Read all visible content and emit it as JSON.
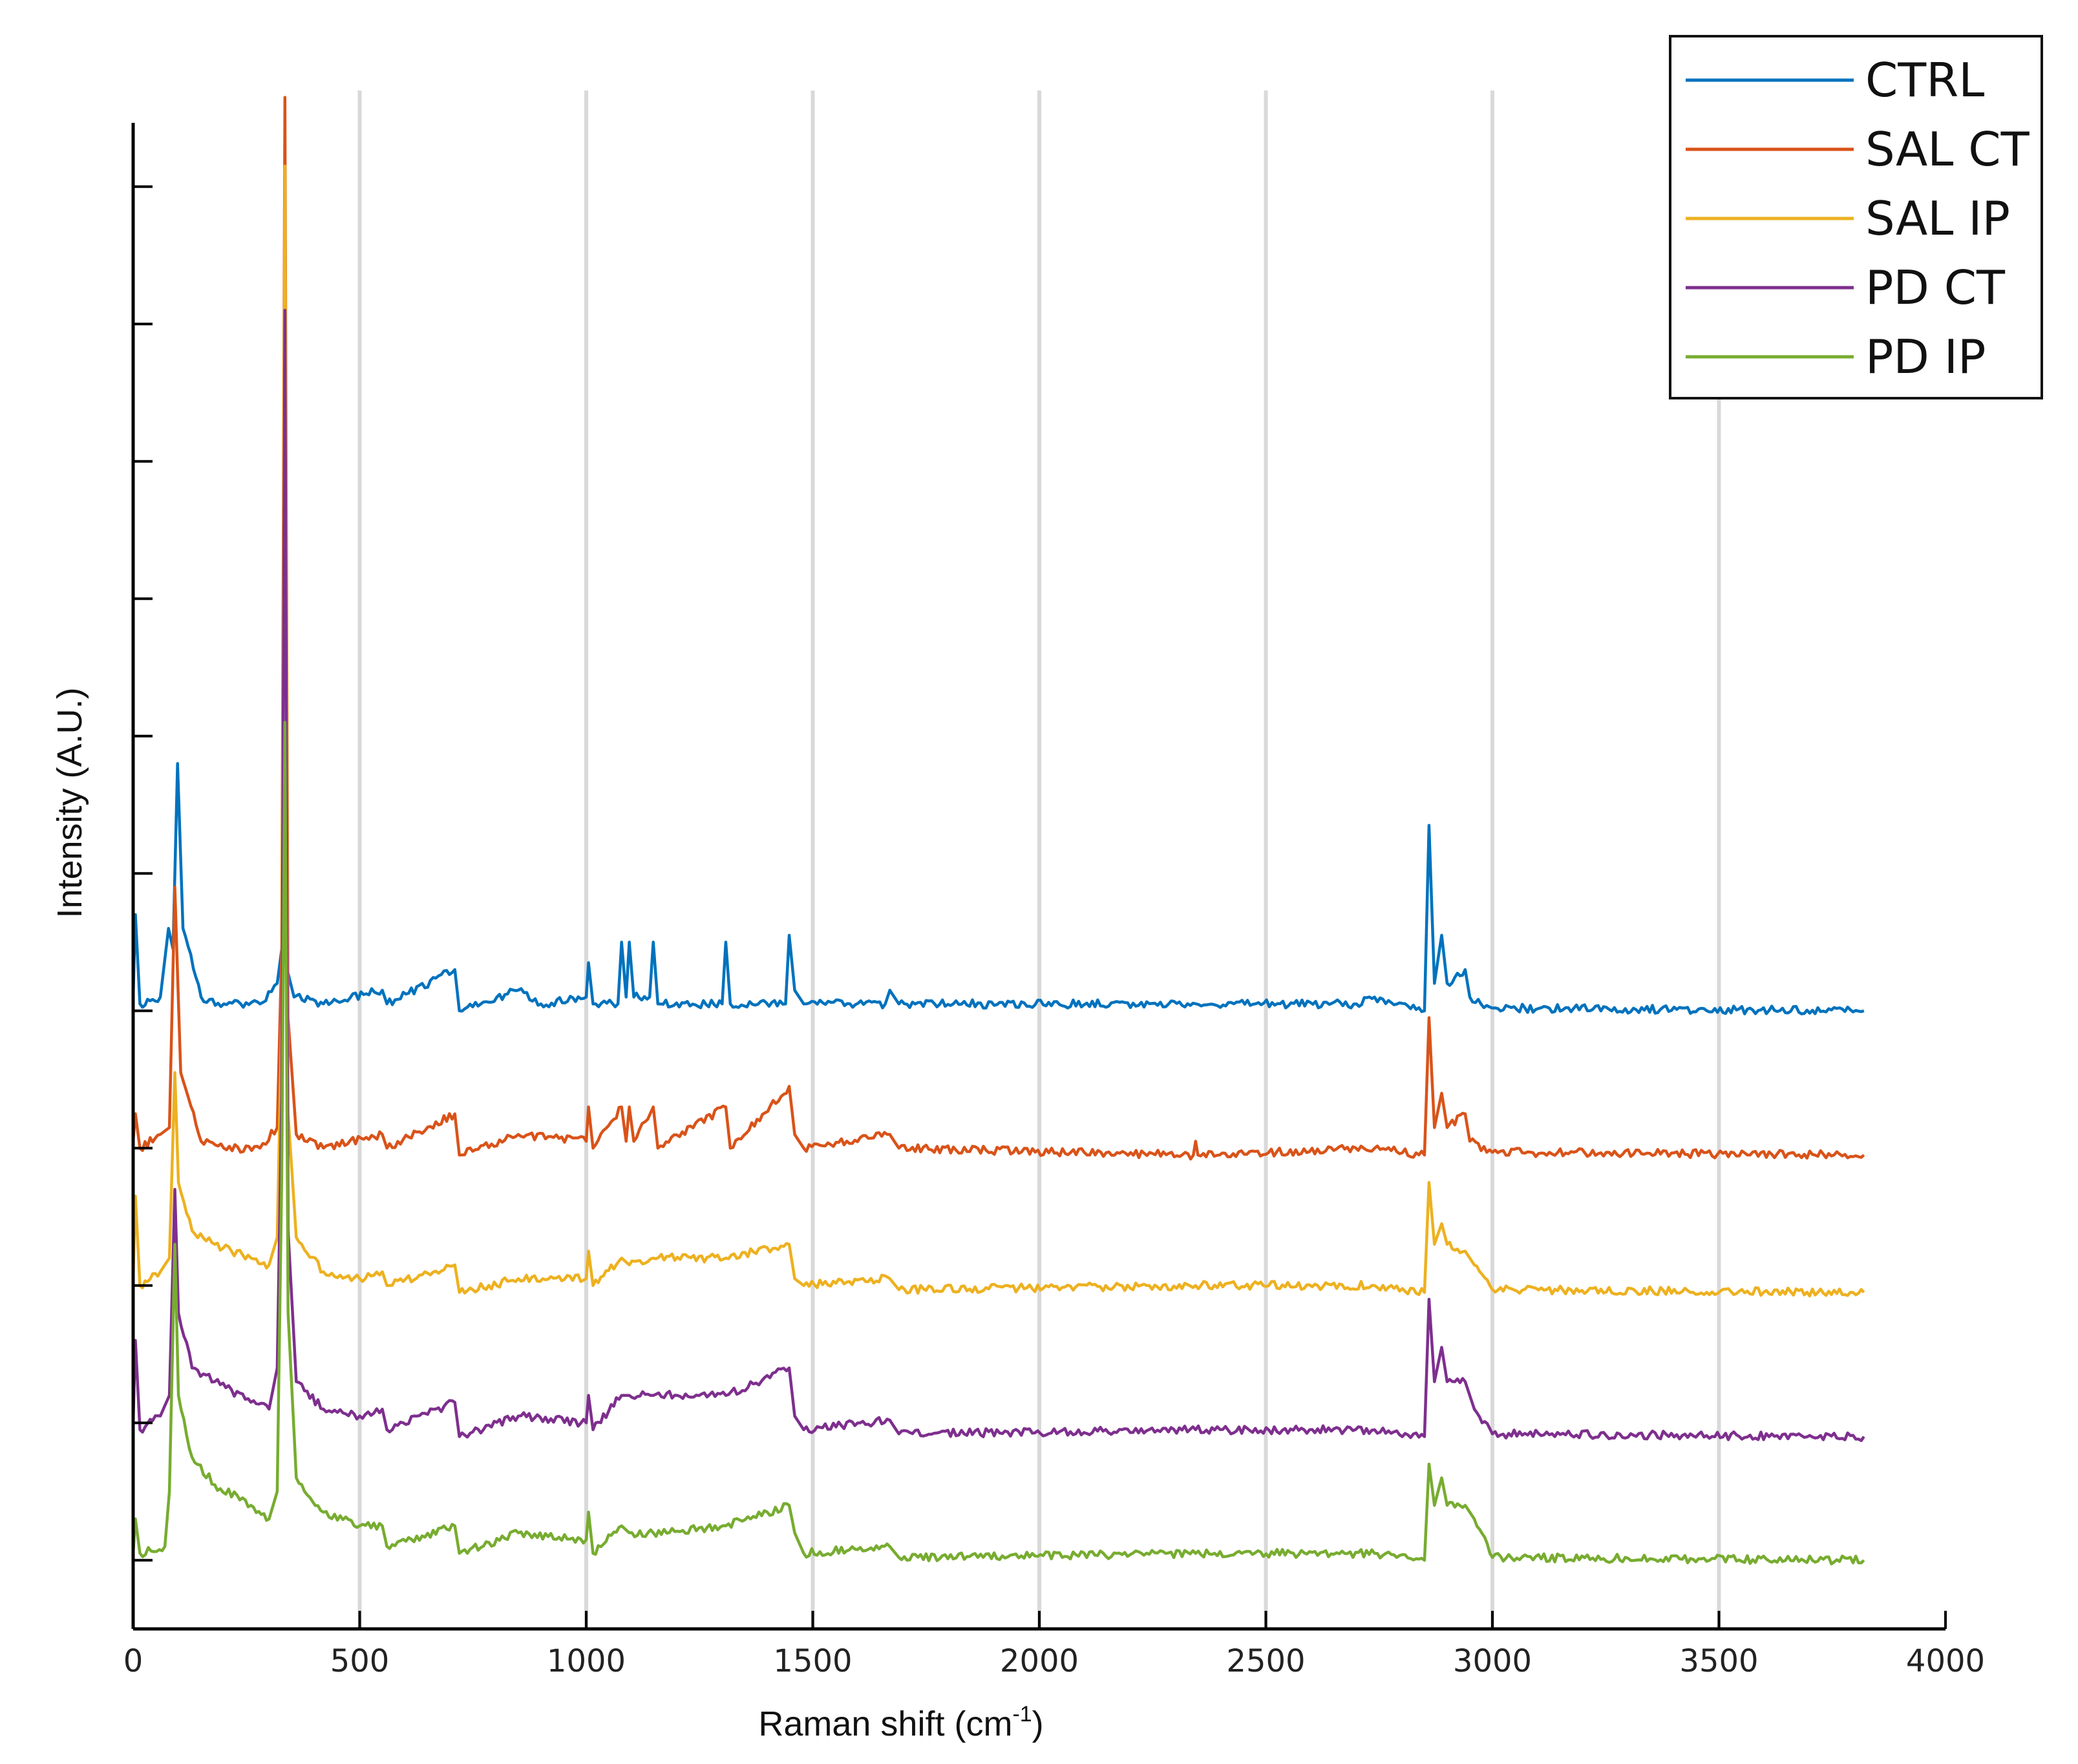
{
  "chart_data": {
    "type": "line",
    "xlabel": "Raman shift (cm",
    "xlabel_sup": "-1",
    "xlabel_end": ")",
    "ylabel": "Intensity (A.U.)",
    "xlim": [
      0,
      4000
    ],
    "ylim": [
      -0.5,
      10.7
    ],
    "x_ticks": [
      "0",
      "500",
      "1000",
      "1500",
      "2000",
      "2500",
      "3000",
      "3500",
      "4000"
    ],
    "y_tick_count": 11,
    "grid": "vertical",
    "legend_position": "top-right",
    "series": [
      {
        "name": "CTRL",
        "color": "#0072BD",
        "offset": 4.0,
        "points": [
          [
            0,
            0.1
          ],
          [
            5,
            0.7
          ],
          [
            15,
            0.05
          ],
          [
            60,
            0.1
          ],
          [
            78,
            0.6
          ],
          [
            88,
            0.45
          ],
          [
            98,
            1.8
          ],
          [
            110,
            0.6
          ],
          [
            150,
            0.1
          ],
          [
            200,
            0.05
          ],
          [
            280,
            0.05
          ],
          [
            318,
            0.2
          ],
          [
            330,
            0.5
          ],
          [
            340,
            0.3
          ],
          [
            355,
            0.1
          ],
          [
            420,
            0.05
          ],
          [
            550,
            0.15
          ],
          [
            560,
            0.05
          ],
          [
            710,
            0.3
          ],
          [
            720,
            0.0
          ],
          [
            850,
            0.15
          ],
          [
            900,
            0.05
          ],
          [
            1000,
            0.1
          ],
          [
            1005,
            0.35
          ],
          [
            1015,
            0.05
          ],
          [
            1070,
            0.05
          ],
          [
            1078,
            0.5
          ],
          [
            1088,
            0.1
          ],
          [
            1095,
            0.5
          ],
          [
            1105,
            0.1
          ],
          [
            1140,
            0.1
          ],
          [
            1148,
            0.5
          ],
          [
            1158,
            0.05
          ],
          [
            1300,
            0.05
          ],
          [
            1308,
            0.5
          ],
          [
            1318,
            0.05
          ],
          [
            1440,
            0.05
          ],
          [
            1448,
            0.55
          ],
          [
            1460,
            0.15
          ],
          [
            1480,
            0.05
          ],
          [
            1660,
            0.05
          ],
          [
            1670,
            0.15
          ],
          [
            1690,
            0.05
          ],
          [
            2700,
            0.05
          ],
          [
            2740,
            0.1
          ],
          [
            2850,
            0.0
          ],
          [
            2860,
            1.35
          ],
          [
            2872,
            0.2
          ],
          [
            2888,
            0.55
          ],
          [
            2900,
            0.2
          ],
          [
            2940,
            0.3
          ],
          [
            2950,
            0.1
          ],
          [
            3000,
            0.02
          ],
          [
            3820,
            0.0
          ]
        ]
      },
      {
        "name": "SAL CT",
        "color": "#D95319",
        "offset": 2.95,
        "points": [
          [
            0,
            0.1
          ],
          [
            5,
            0.3
          ],
          [
            15,
            0.05
          ],
          [
            60,
            0.15
          ],
          [
            80,
            0.2
          ],
          [
            92,
            1.95
          ],
          [
            105,
            0.6
          ],
          [
            150,
            0.1
          ],
          [
            200,
            0.05
          ],
          [
            280,
            0.05
          ],
          [
            318,
            0.2
          ],
          [
            328,
            1.5
          ],
          [
            335,
            7.7
          ],
          [
            342,
            1.0
          ],
          [
            360,
            0.15
          ],
          [
            420,
            0.05
          ],
          [
            550,
            0.15
          ],
          [
            560,
            0.05
          ],
          [
            710,
            0.3
          ],
          [
            720,
            0.0
          ],
          [
            850,
            0.15
          ],
          [
            1000,
            0.1
          ],
          [
            1005,
            0.35
          ],
          [
            1015,
            0.05
          ],
          [
            1078,
            0.35
          ],
          [
            1088,
            0.1
          ],
          [
            1095,
            0.35
          ],
          [
            1105,
            0.1
          ],
          [
            1148,
            0.35
          ],
          [
            1158,
            0.05
          ],
          [
            1308,
            0.35
          ],
          [
            1318,
            0.05
          ],
          [
            1448,
            0.5
          ],
          [
            1460,
            0.15
          ],
          [
            1480,
            0.05
          ],
          [
            1670,
            0.15
          ],
          [
            1690,
            0.05
          ],
          [
            2340,
            0.0
          ],
          [
            2345,
            0.1
          ],
          [
            2350,
            0.0
          ],
          [
            2740,
            0.05
          ],
          [
            2850,
            0.0
          ],
          [
            2860,
            1.0
          ],
          [
            2872,
            0.2
          ],
          [
            2888,
            0.45
          ],
          [
            2900,
            0.2
          ],
          [
            2940,
            0.3
          ],
          [
            2950,
            0.1
          ],
          [
            3000,
            0.02
          ],
          [
            3820,
            0.0
          ]
        ]
      },
      {
        "name": "SAL IP",
        "color": "#EDB120",
        "offset": 1.95,
        "points": [
          [
            0,
            0.1
          ],
          [
            5,
            0.7
          ],
          [
            15,
            0.05
          ],
          [
            60,
            0.15
          ],
          [
            80,
            0.25
          ],
          [
            92,
            1.6
          ],
          [
            100,
            0.8
          ],
          [
            130,
            0.45
          ],
          [
            180,
            0.35
          ],
          [
            260,
            0.25
          ],
          [
            300,
            0.2
          ],
          [
            318,
            0.4
          ],
          [
            328,
            2.0
          ],
          [
            335,
            8.2
          ],
          [
            342,
            1.3
          ],
          [
            360,
            0.4
          ],
          [
            420,
            0.15
          ],
          [
            500,
            0.1
          ],
          [
            550,
            0.15
          ],
          [
            560,
            0.05
          ],
          [
            710,
            0.2
          ],
          [
            720,
            0.0
          ],
          [
            850,
            0.1
          ],
          [
            1000,
            0.1
          ],
          [
            1005,
            0.3
          ],
          [
            1015,
            0.05
          ],
          [
            1078,
            0.25
          ],
          [
            1095,
            0.2
          ],
          [
            1148,
            0.25
          ],
          [
            1308,
            0.25
          ],
          [
            1448,
            0.35
          ],
          [
            1460,
            0.1
          ],
          [
            1480,
            0.05
          ],
          [
            1670,
            0.1
          ],
          [
            1690,
            0.02
          ],
          [
            2345,
            0.05
          ],
          [
            2740,
            0.05
          ],
          [
            2850,
            0.0
          ],
          [
            2860,
            0.8
          ],
          [
            2872,
            0.35
          ],
          [
            2888,
            0.5
          ],
          [
            2900,
            0.35
          ],
          [
            2940,
            0.3
          ],
          [
            2960,
            0.2
          ],
          [
            3000,
            0.02
          ],
          [
            3820,
            0.0
          ]
        ]
      },
      {
        "name": "PD CT",
        "color": "#7E2F8E",
        "offset": 0.9,
        "points": [
          [
            0,
            0.1
          ],
          [
            5,
            0.7
          ],
          [
            15,
            0.05
          ],
          [
            60,
            0.15
          ],
          [
            80,
            0.3
          ],
          [
            92,
            1.8
          ],
          [
            100,
            0.9
          ],
          [
            130,
            0.5
          ],
          [
            180,
            0.4
          ],
          [
            260,
            0.25
          ],
          [
            300,
            0.2
          ],
          [
            318,
            0.5
          ],
          [
            328,
            2.5
          ],
          [
            335,
            8.2
          ],
          [
            342,
            1.5
          ],
          [
            360,
            0.4
          ],
          [
            420,
            0.2
          ],
          [
            500,
            0.15
          ],
          [
            550,
            0.2
          ],
          [
            560,
            0.05
          ],
          [
            710,
            0.25
          ],
          [
            720,
            0.0
          ],
          [
            850,
            0.15
          ],
          [
            1000,
            0.1
          ],
          [
            1005,
            0.3
          ],
          [
            1015,
            0.05
          ],
          [
            1078,
            0.3
          ],
          [
            1095,
            0.3
          ],
          [
            1148,
            0.3
          ],
          [
            1308,
            0.3
          ],
          [
            1448,
            0.5
          ],
          [
            1460,
            0.15
          ],
          [
            1480,
            0.05
          ],
          [
            1670,
            0.12
          ],
          [
            1690,
            0.02
          ],
          [
            2345,
            0.05
          ],
          [
            2740,
            0.05
          ],
          [
            2850,
            0.0
          ],
          [
            2860,
            1.0
          ],
          [
            2872,
            0.4
          ],
          [
            2888,
            0.65
          ],
          [
            2900,
            0.4
          ],
          [
            2940,
            0.4
          ],
          [
            2960,
            0.2
          ],
          [
            3000,
            0.02
          ],
          [
            3820,
            0.0
          ]
        ]
      },
      {
        "name": "PD IP",
        "color": "#77AC30",
        "offset": 0.0,
        "points": [
          [
            0,
            0.05
          ],
          [
            5,
            0.3
          ],
          [
            15,
            0.05
          ],
          [
            70,
            0.1
          ],
          [
            80,
            0.5
          ],
          [
            92,
            2.3
          ],
          [
            100,
            1.2
          ],
          [
            130,
            0.75
          ],
          [
            180,
            0.55
          ],
          [
            260,
            0.4
          ],
          [
            300,
            0.3
          ],
          [
            318,
            0.5
          ],
          [
            328,
            2.8
          ],
          [
            335,
            6.1
          ],
          [
            342,
            1.8
          ],
          [
            360,
            0.6
          ],
          [
            420,
            0.35
          ],
          [
            500,
            0.25
          ],
          [
            550,
            0.25
          ],
          [
            560,
            0.1
          ],
          [
            710,
            0.25
          ],
          [
            720,
            0.05
          ],
          [
            850,
            0.2
          ],
          [
            1000,
            0.15
          ],
          [
            1005,
            0.35
          ],
          [
            1015,
            0.05
          ],
          [
            1078,
            0.25
          ],
          [
            1095,
            0.2
          ],
          [
            1148,
            0.2
          ],
          [
            1308,
            0.25
          ],
          [
            1448,
            0.4
          ],
          [
            1460,
            0.2
          ],
          [
            1480,
            0.05
          ],
          [
            1670,
            0.1
          ],
          [
            1690,
            0.02
          ],
          [
            2345,
            0.05
          ],
          [
            2740,
            0.05
          ],
          [
            2850,
            0.0
          ],
          [
            2860,
            0.7
          ],
          [
            2872,
            0.4
          ],
          [
            2888,
            0.6
          ],
          [
            2900,
            0.4
          ],
          [
            2940,
            0.4
          ],
          [
            2960,
            0.3
          ],
          [
            3000,
            0.02
          ],
          [
            3820,
            0.0
          ]
        ]
      }
    ]
  }
}
